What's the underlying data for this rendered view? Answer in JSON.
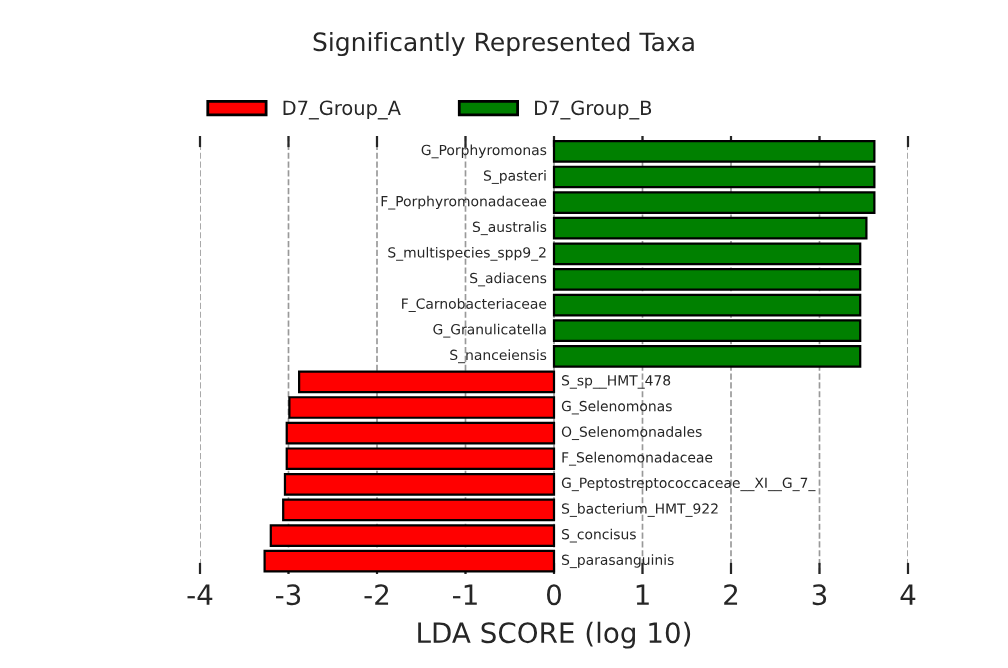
{
  "chart_data": {
    "type": "bar",
    "orientation": "horizontal",
    "title": "Significantly Represented Taxa",
    "xlabel": "LDA SCORE (log 10)",
    "categories": [
      "G_Porphyromonas",
      "S_pasteri",
      "F_Porphyromonadaceae",
      "S_australis",
      "S_multispecies_spp9_2",
      "S_adiacens",
      "F_Carnobacteriaceae",
      "G_Granulicatella",
      "S_nanceiensis",
      "S_sp__HMT_478",
      "G_Selenomonas",
      "O_Selenomonadales",
      "F_Selenomonadaceae",
      "G_Peptostreptococcaceae__XI__G_7_",
      "S_bacterium_HMT_922",
      "S_concisus",
      "S_parasanguinis"
    ],
    "series": [
      {
        "name": "D7_Group_A",
        "color": "#ff0000",
        "values": [
          null,
          null,
          null,
          null,
          null,
          null,
          null,
          null,
          null,
          -2.88,
          -2.99,
          -3.02,
          -3.02,
          -3.04,
          -3.06,
          -3.2,
          -3.27
        ]
      },
      {
        "name": "D7_Group_B",
        "color": "#008000",
        "values": [
          3.62,
          3.62,
          3.62,
          3.53,
          3.46,
          3.46,
          3.46,
          3.46,
          3.46,
          null,
          null,
          null,
          null,
          null,
          null,
          null,
          null
        ]
      }
    ],
    "xlim": [
      -4,
      4
    ],
    "xticks": [
      -4,
      -3,
      -2,
      -1,
      0,
      1,
      2,
      3,
      4
    ],
    "grid": "x",
    "legend": "top left"
  }
}
